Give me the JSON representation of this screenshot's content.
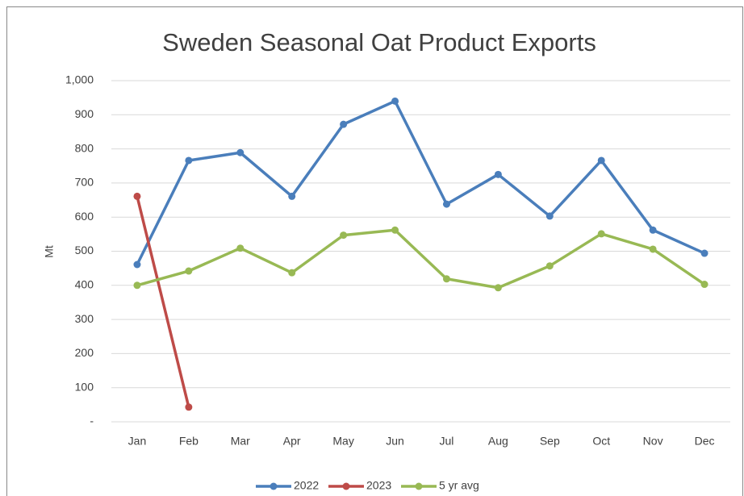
{
  "chart_data": {
    "type": "line",
    "title": "Sweden Seasonal Oat Product Exports",
    "y_label": "Mt",
    "categories": [
      "Jan",
      "Feb",
      "Mar",
      "Apr",
      "May",
      "Jun",
      "Jul",
      "Aug",
      "Sep",
      "Oct",
      "Nov",
      "Dec"
    ],
    "series": [
      {
        "name": "2022",
        "color": "#4a7ebb",
        "values": [
          461,
          766,
          789,
          661,
          872,
          940,
          638,
          725,
          603,
          766,
          562,
          494
        ]
      },
      {
        "name": "2023",
        "color": "#be4b48",
        "values": [
          661,
          43,
          null,
          null,
          null,
          null,
          null,
          null,
          null,
          null,
          null,
          null
        ]
      },
      {
        "name": "5 yr avg",
        "color": "#98b954",
        "values": [
          400,
          442,
          509,
          437,
          547,
          562,
          419,
          393,
          457,
          551,
          506,
          403
        ]
      }
    ],
    "ylim": [
      0,
      1000
    ],
    "yticks": [
      {
        "value": 0,
        "label": "-"
      },
      100,
      200,
      300,
      400,
      500,
      600,
      700,
      800,
      900,
      {
        "value": 1000,
        "label": "1,000"
      }
    ],
    "grid": true,
    "legend": "bottom"
  }
}
